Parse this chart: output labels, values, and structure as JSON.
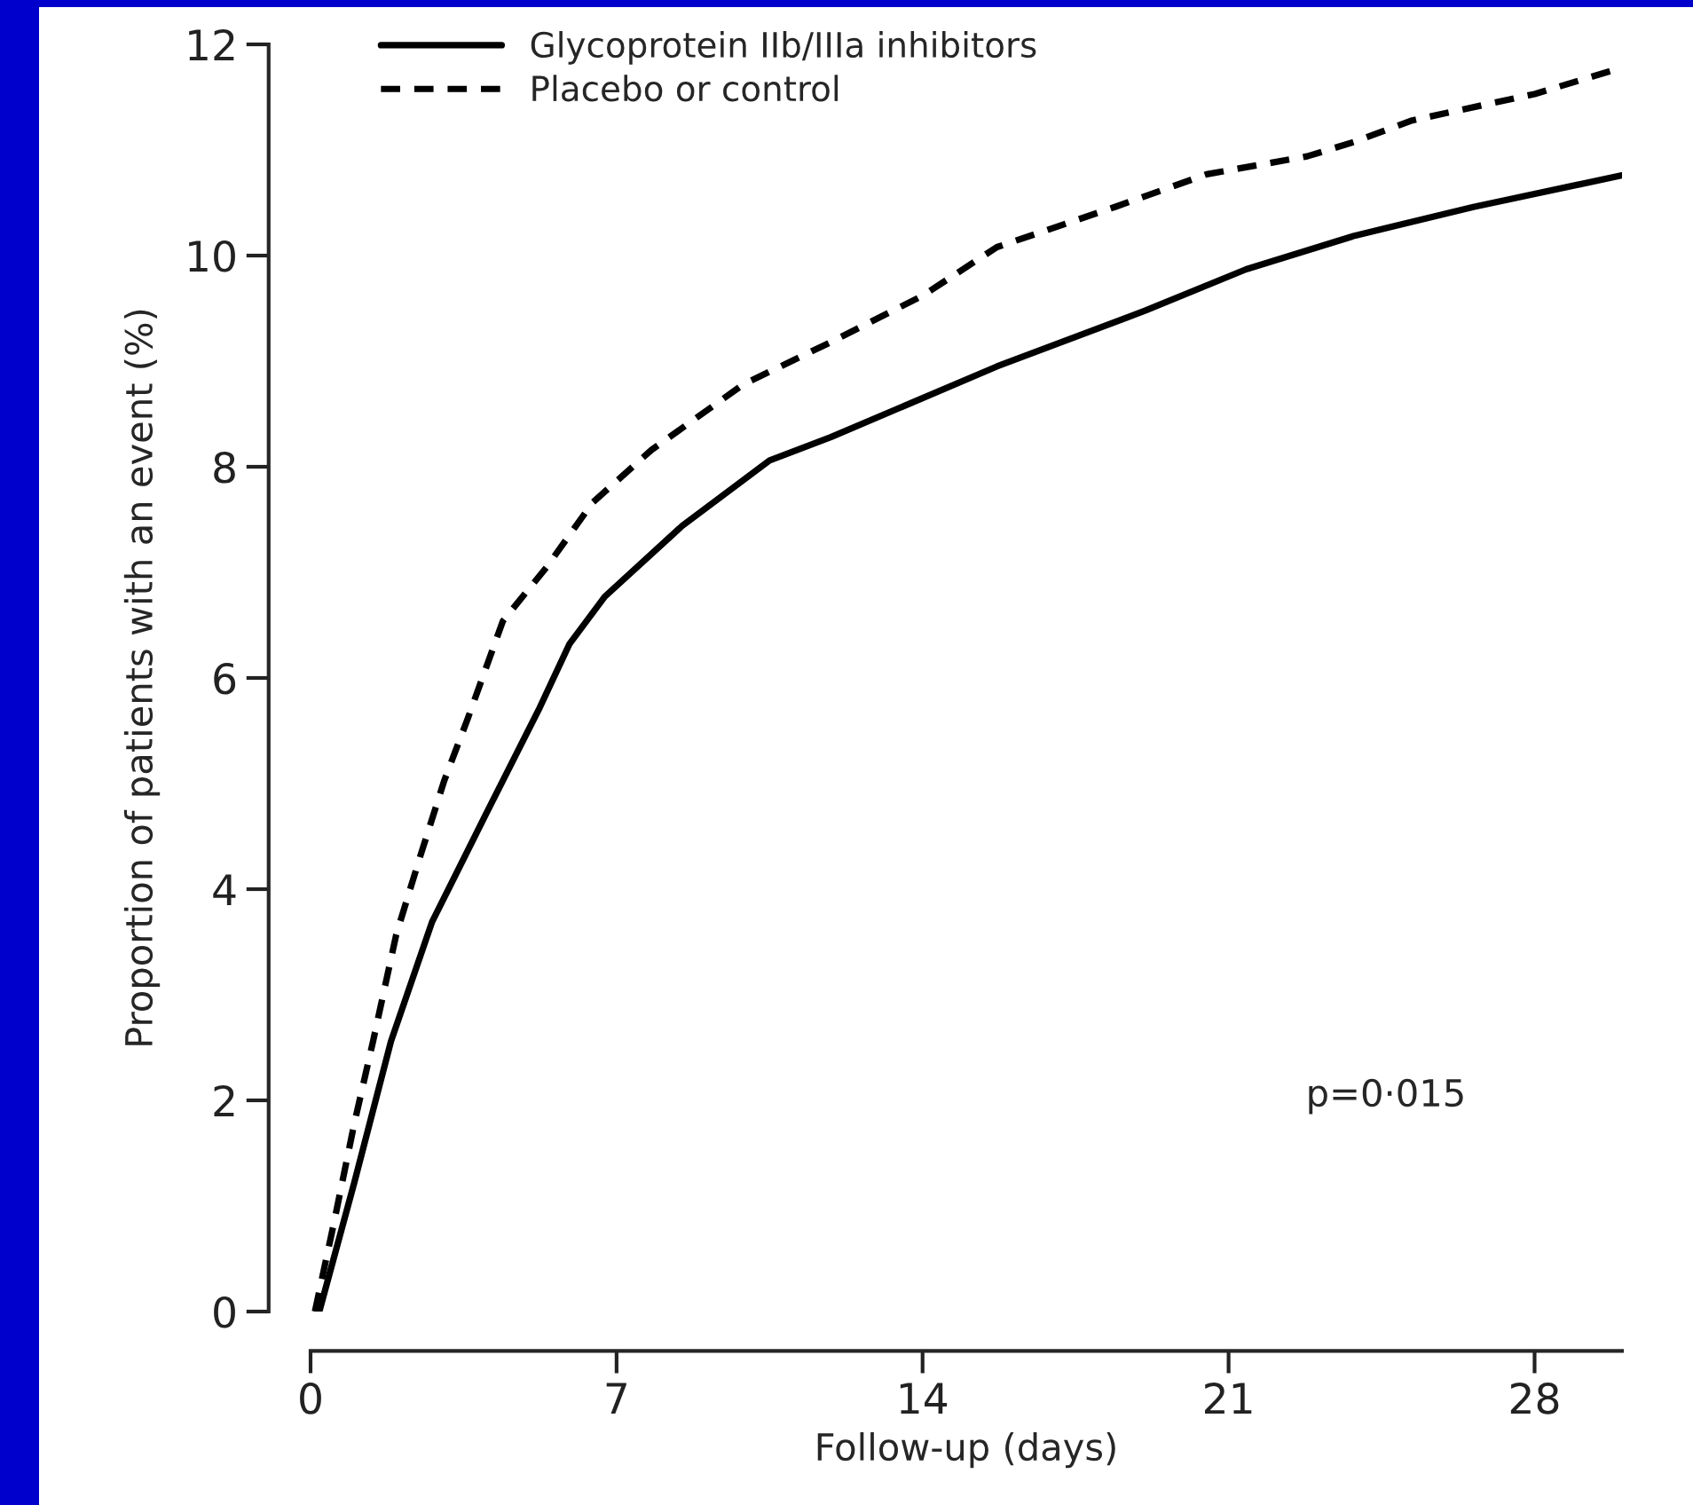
{
  "chart_data": {
    "type": "line",
    "xlabel": "Follow-up (days)",
    "ylabel": "Proportion of patients with an event (%)",
    "xlim": [
      0,
      30
    ],
    "xticks": [
      0,
      7,
      14,
      21,
      28
    ],
    "ylim": [
      0,
      12
    ],
    "yticks": [
      0,
      2,
      4,
      6,
      8,
      10,
      12
    ],
    "grid": false,
    "legend": "top left",
    "marker": "none",
    "annotations": [
      "p=0·015"
    ],
    "series": [
      {
        "name": "Glycoprotein IIb/IIIa inhibitors",
        "color": "#000000",
        "line_style": "solid",
        "x": [
          0.2,
          1.0,
          1.84,
          2.78,
          4.0,
          5.22,
          5.92,
          6.73,
          8.5,
          10.5,
          11.9,
          15.7,
          19.1,
          21.4,
          23.9,
          26.6,
          30
        ],
        "values": [
          0,
          1.22,
          2.56,
          3.69,
          4.7,
          5.7,
          6.32,
          6.77,
          7.44,
          8.06,
          8.28,
          8.95,
          9.48,
          9.87,
          10.19,
          10.46,
          10.76
        ]
      },
      {
        "name": "Placebo or control",
        "color": "#000000",
        "line_style": "dashed",
        "x": [
          0.1,
          0.53,
          1.0,
          1.43,
          1.96,
          2.5,
          3.06,
          3.6,
          4.4,
          5.4,
          6.45,
          7.8,
          9.9,
          11.9,
          14.0,
          15.7,
          18.4,
          20.5,
          22.8,
          23.9,
          25.2,
          28.0,
          30
        ],
        "values": [
          0,
          0.83,
          1.78,
          2.56,
          3.57,
          4.3,
          5.03,
          5.62,
          6.54,
          7.05,
          7.66,
          8.16,
          8.78,
          9.18,
          9.62,
          10.08,
          10.46,
          10.77,
          10.94,
          11.08,
          11.28,
          11.53,
          11.78
        ]
      }
    ]
  }
}
